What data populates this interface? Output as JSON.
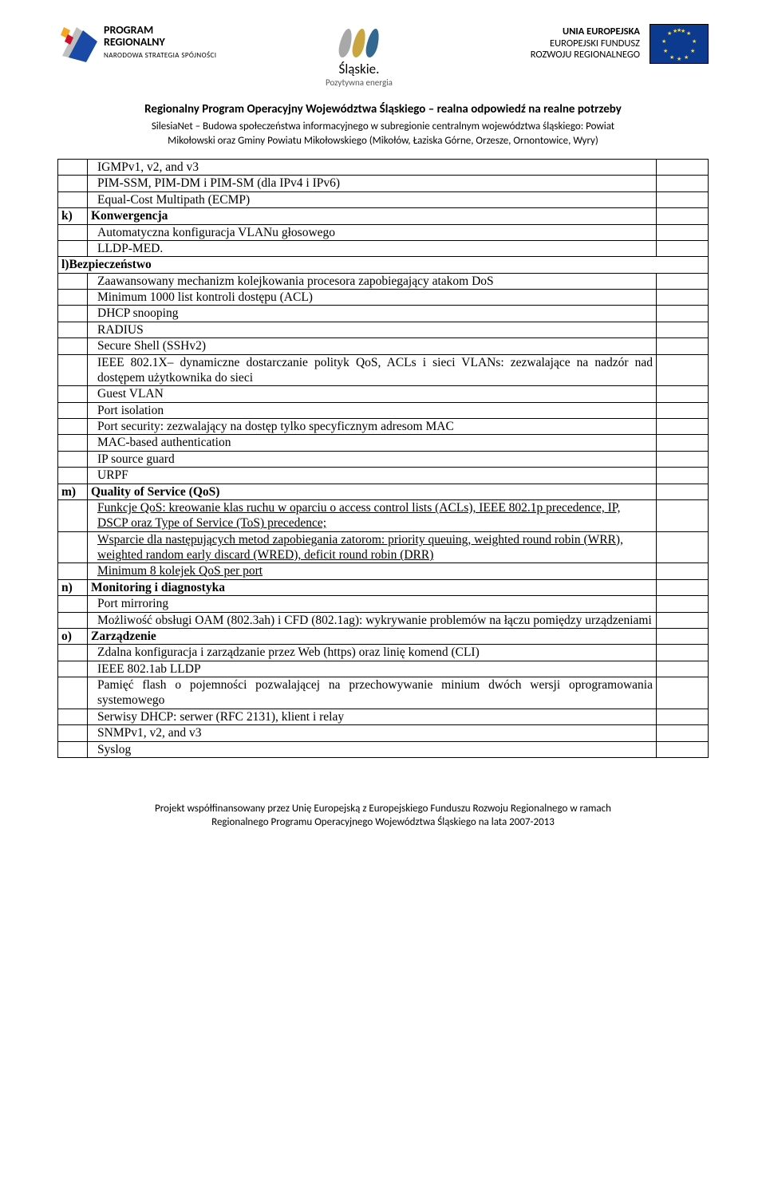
{
  "header": {
    "logo_left_line1": "PROGRAM",
    "logo_left_line2": "REGIONALNY",
    "logo_left_sub": "NARODOWA STRATEGIA SPÓJNOŚCI",
    "logo_center_label": "Śląskie.",
    "logo_center_sub": "Pozytywna energia",
    "eu_line1": "UNIA EUROPEJSKA",
    "eu_line2": "EUROPEJSKI FUNDUSZ",
    "eu_line3": "ROZWOJU REGIONALNEGO",
    "title": "Regionalny Program Operacyjny Województwa Śląskiego – realna odpowiedź na realne potrzeby",
    "sub1": "SilesiaNet – Budowa społeczeństwa informacyjnego w subregionie centralnym województwa śląskiego: Powiat",
    "sub2": "Mikołowski oraz Gminy Powiatu Mikołowskiego (Mikołów, Łaziska Górne, Orzesze, Ornontowice, Wyry)"
  },
  "rows": [
    {
      "l": "",
      "m": "IGMPv1, v2, and v3",
      "indent": true
    },
    {
      "l": "",
      "m": "PIM-SSM, PIM-DM i PIM-SM (dla IPv4 i IPv6)",
      "indent": true
    },
    {
      "l": "",
      "m": "Equal-Cost Multipath (ECMP)",
      "indent": true
    },
    {
      "l": "k)",
      "m": "Konwergencja",
      "section": true
    },
    {
      "l": "",
      "m": "Automatyczna konfiguracja VLANu głosowego",
      "indent": true
    },
    {
      "l": "",
      "m": "LLDP-MED.",
      "indent": true
    },
    {
      "l": "l)Bezpieczeństwo",
      "m": "__SPAN__",
      "section": true
    },
    {
      "l": "",
      "m": "Zaawansowany mechanizm kolejkowania procesora zapobiegający atakom DoS",
      "indent": true
    },
    {
      "l": "",
      "m": "Minimum 1000 list kontroli dostępu (ACL)",
      "indent": true
    },
    {
      "l": "",
      "m": "DHCP snooping",
      "indent": true
    },
    {
      "l": "",
      "m": "RADIUS",
      "indent": true
    },
    {
      "l": "",
      "m": "Secure Shell (SSHv2)",
      "indent": true
    },
    {
      "l": "",
      "m": "IEEE 802.1X– dynamiczne dostarczanie polityk QoS, ACLs i sieci VLANs: zezwalające na nadzór nad dostępem użytkownika do sieci",
      "indent": true,
      "justify": true
    },
    {
      "l": "",
      "m": "Guest VLAN",
      "indent": true
    },
    {
      "l": "",
      "m": "Port isolation",
      "indent": true
    },
    {
      "l": "",
      "m": "Port security: zezwalający na dostęp tylko specyficznym adresom MAC",
      "indent": true
    },
    {
      "l": "",
      "m": "MAC-based authentication",
      "indent": true
    },
    {
      "l": "",
      "m": "IP source guard",
      "indent": true
    },
    {
      "l": "",
      "m": "URPF",
      "indent": true
    },
    {
      "l": "m)",
      "m": "Quality of Service (QoS)",
      "section": true
    },
    {
      "l": "",
      "m": "Funkcje QoS: kreowanie klas ruchu w oparciu o access control lists (ACLs), IEEE 802.1p precedence, IP, DSCP oraz Type of Service (ToS) precedence;",
      "indent": true,
      "underline": true
    },
    {
      "l": "",
      "m": "Wsparcie dla następujących metod zapobiegania zatorom: priority queuing, weighted round robin (WRR), weighted random early discard (WRED), deficit round robin (DRR)",
      "indent": true,
      "underline": true
    },
    {
      "l": "",
      "m": "Minimum 8 kolejek QoS per port",
      "indent": true,
      "underline": true
    },
    {
      "l": "n)",
      "m": "Monitoring i diagnostyka",
      "section": true
    },
    {
      "l": "",
      "m": "Port mirroring",
      "indent": true
    },
    {
      "l": "",
      "m": "Możliwość obsługi OAM (802.3ah) i CFD (802.1ag):  wykrywanie problemów na łączu pomiędzy urządzeniami",
      "indent": true,
      "justify": true
    },
    {
      "l": "o)",
      "m": "Zarządzenie",
      "section": true
    },
    {
      "l": "",
      "m": "Zdalna konfiguracja i zarządzanie przez Web (https) oraz linię komend (CLI)",
      "indent": true
    },
    {
      "l": "",
      "m": "IEEE 802.1ab LLDP",
      "indent": true
    },
    {
      "l": "",
      "m": "Pamięć flash o pojemności pozwalającej na przechowywanie minium dwóch wersji oprogramowania systemowego",
      "indent": true,
      "justify": true
    },
    {
      "l": "",
      "m": "Serwisy DHCP: serwer (RFC 2131), klient i relay",
      "indent": true
    },
    {
      "l": "",
      "m": "SNMPv1, v2, and v3",
      "indent": true
    },
    {
      "l": "",
      "m": "Syslog",
      "indent": true
    }
  ],
  "footer": {
    "line1": "Projekt współfinansowany przez Unię Europejską z Europejskiego Funduszu Rozwoju Regionalnego w ramach",
    "line2": "Regionalnego Programu Operacyjnego Województwa Śląskiego na lata 2007-2013"
  },
  "colors": {
    "logo_left_yellow": "#f5a623",
    "logo_left_red": "#c8102e",
    "logo_left_blue": "#1b4aa6",
    "curve_grey": "#a8a8a8",
    "curve_yellow": "#c9a641",
    "curve_blue": "#336891",
    "eu_blue": "#0b3a8f",
    "eu_star": "#ffda2e"
  }
}
